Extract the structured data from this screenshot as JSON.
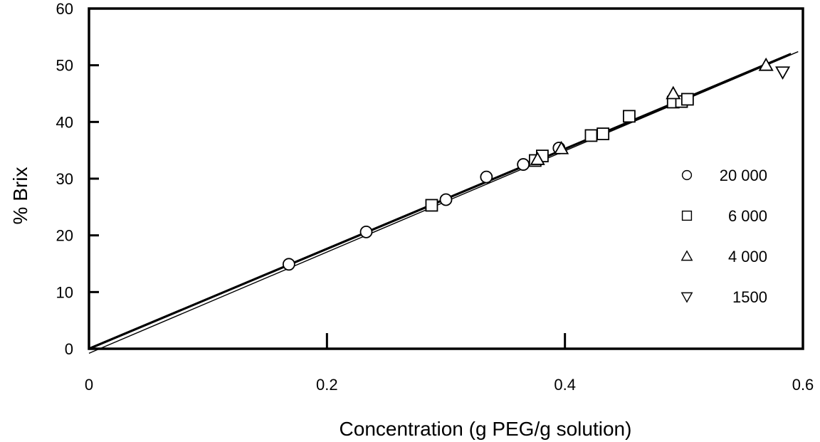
{
  "chart_data": {
    "type": "scatter",
    "xlabel": "Concentration (g PEG/g solution)",
    "ylabel": "% Brix",
    "xlim": [
      0,
      0.6
    ],
    "ylim": [
      0,
      60
    ],
    "x_ticks": [
      0,
      0.2,
      0.4,
      0.6
    ],
    "y_ticks": [
      0,
      10,
      20,
      30,
      40,
      50,
      60
    ],
    "x_tick_labels": [
      "0",
      "0.2",
      "0.4",
      "0.6"
    ],
    "y_tick_labels": [
      "0",
      "10",
      "20",
      "30",
      "40",
      "50",
      "60"
    ],
    "grid": false,
    "legend_position": "right",
    "series": [
      {
        "name": "20 000",
        "marker": "circle",
        "x": [
          0.168,
          0.233,
          0.3,
          0.334,
          0.365,
          0.395
        ],
        "y": [
          14.9,
          20.6,
          26.3,
          30.3,
          32.5,
          35.4
        ]
      },
      {
        "name": "6 000",
        "marker": "square",
        "x": [
          0.288,
          0.375,
          0.381,
          0.422,
          0.432,
          0.454,
          0.491,
          0.498,
          0.503
        ],
        "y": [
          25.3,
          33.2,
          34.0,
          37.6,
          37.9,
          41.0,
          43.5,
          43.6,
          44.0
        ]
      },
      {
        "name": "4 000",
        "marker": "triangle-up",
        "x": [
          0.377,
          0.397,
          0.491,
          0.569
        ],
        "y": [
          33.4,
          35.3,
          45.0,
          50.0
        ]
      },
      {
        "name": "1500",
        "marker": "triangle-down",
        "x": [
          0.583
        ],
        "y": [
          48.8
        ]
      }
    ],
    "fit_lines": [
      {
        "x": [
          0,
          0.59
        ],
        "y": [
          0,
          52.0
        ],
        "style": "thick"
      },
      {
        "x": [
          0,
          0.596
        ],
        "y": [
          -0.8,
          52.4
        ],
        "style": "thin"
      }
    ]
  }
}
